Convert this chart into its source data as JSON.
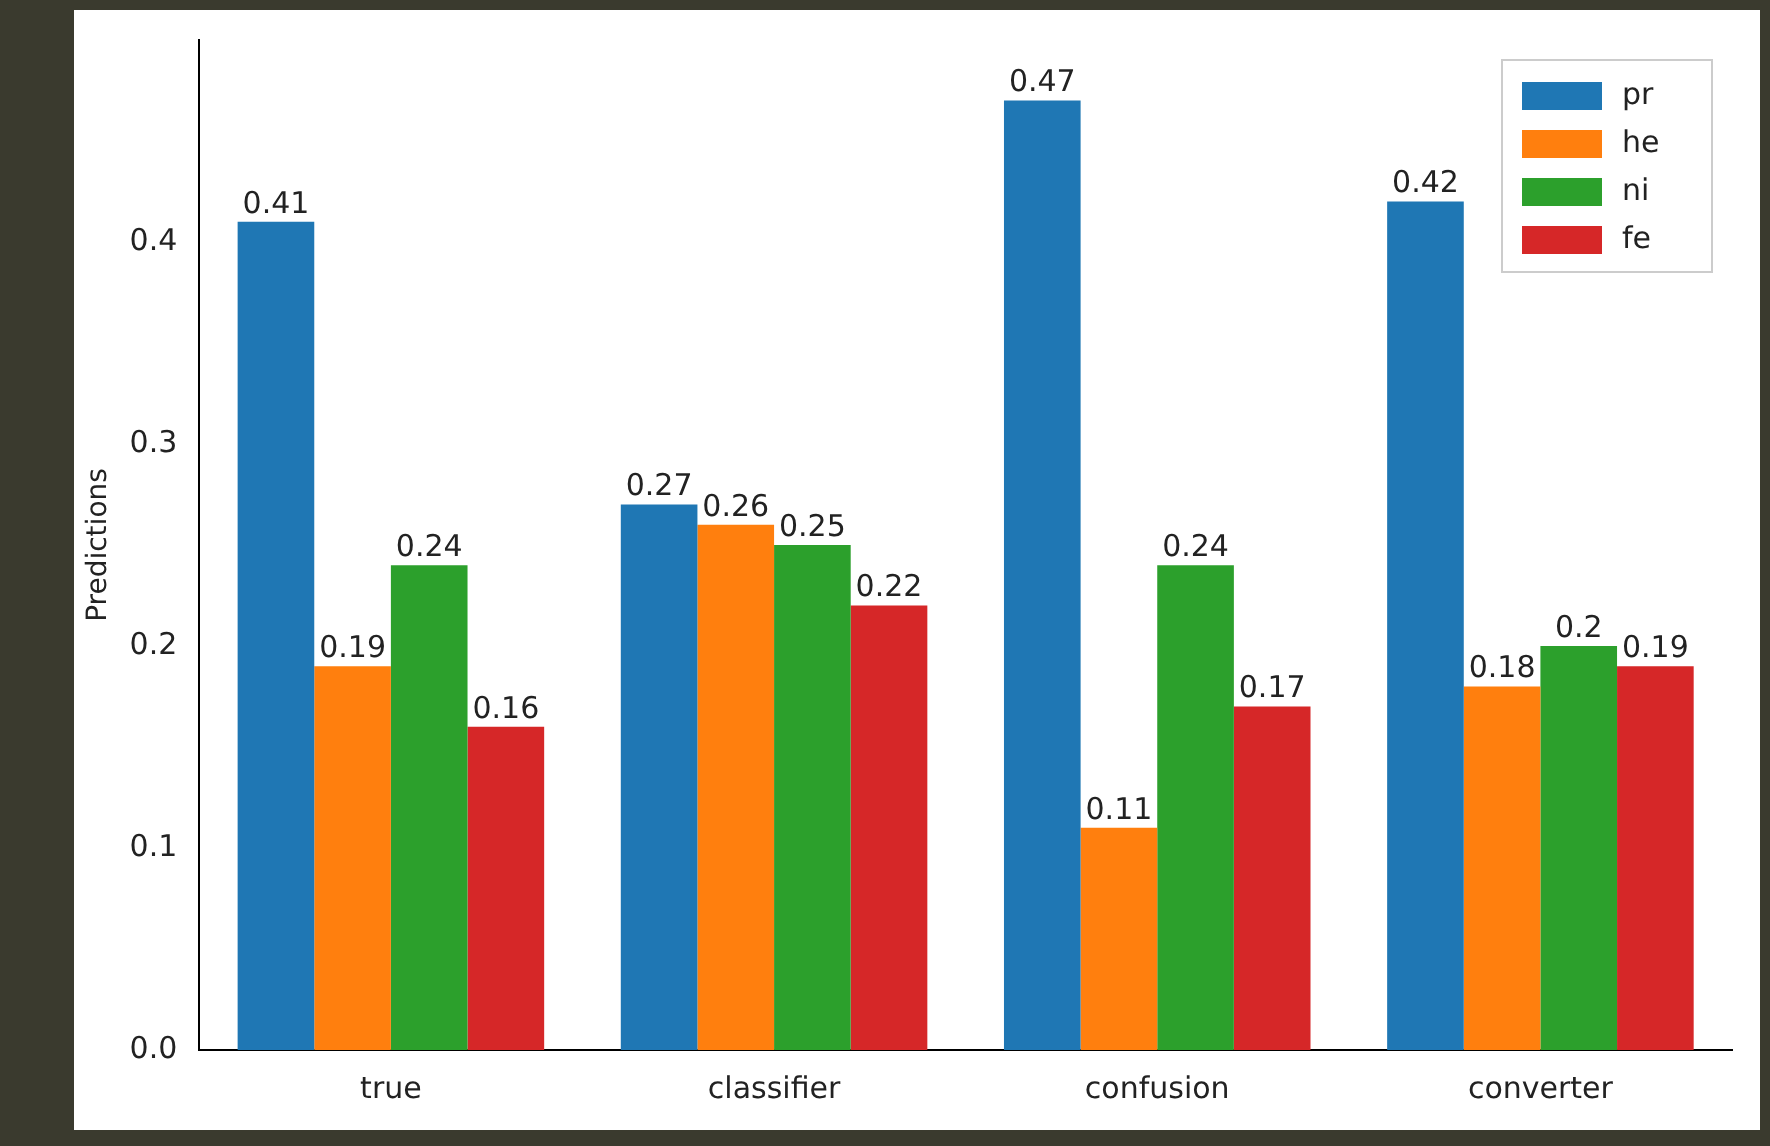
{
  "chart_data": {
    "type": "bar",
    "ylabel": "Predictions",
    "categories": [
      "true",
      "classifier",
      "confusion",
      "converter"
    ],
    "series": [
      {
        "name": "pr",
        "color": "#1f77b4",
        "values": [
          0.41,
          0.27,
          0.47,
          0.42
        ]
      },
      {
        "name": "he",
        "color": "#ff7f0e",
        "values": [
          0.19,
          0.26,
          0.11,
          0.18
        ]
      },
      {
        "name": "ni",
        "color": "#2ca02c",
        "values": [
          0.24,
          0.25,
          0.24,
          0.2
        ]
      },
      {
        "name": "fe",
        "color": "#d62728",
        "values": [
          0.16,
          0.22,
          0.17,
          0.19
        ]
      }
    ],
    "ylim": [
      0,
      0.5
    ],
    "yticks": [
      {
        "value": 0,
        "label": "0.0"
      },
      {
        "value": 0.1,
        "label": "0.1"
      },
      {
        "value": 0.2,
        "label": "0.2"
      },
      {
        "value": 0.3,
        "label": "0.3"
      },
      {
        "value": 0.4,
        "label": "0.4"
      }
    ],
    "data_labels": true,
    "legend": "top right",
    "grid": false
  }
}
